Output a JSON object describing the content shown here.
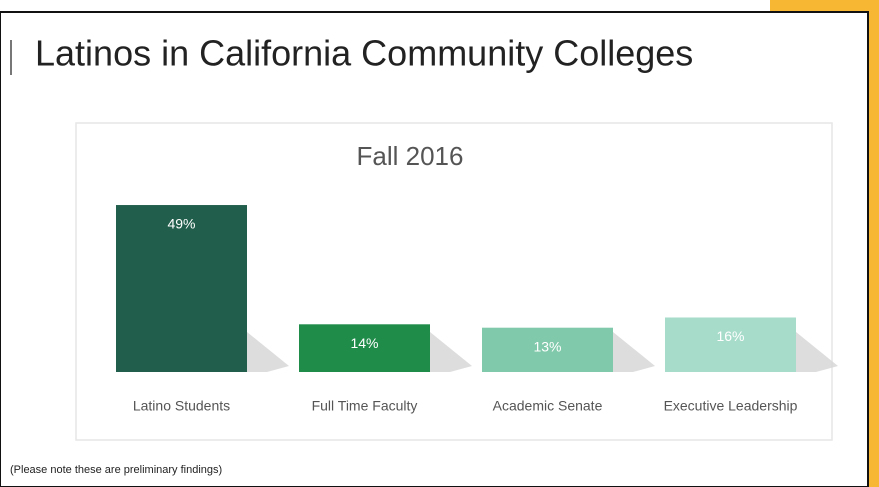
{
  "title": "Latinos in California Community Colleges",
  "note": "(Please note these are preliminary findings)",
  "chart_data": {
    "type": "bar",
    "title": "Fall 2016",
    "categories": [
      "Latino Students",
      "Full Time Faculty",
      "Academic Senate",
      "Executive Leadership"
    ],
    "values": [
      49,
      14,
      13,
      16
    ],
    "value_labels": [
      "49%",
      "14%",
      "13%",
      "16%"
    ],
    "colors": [
      "#215e4b",
      "#1f8c4a",
      "#80c9aa",
      "#a7dccb"
    ],
    "ylim": [
      0,
      54
    ]
  }
}
